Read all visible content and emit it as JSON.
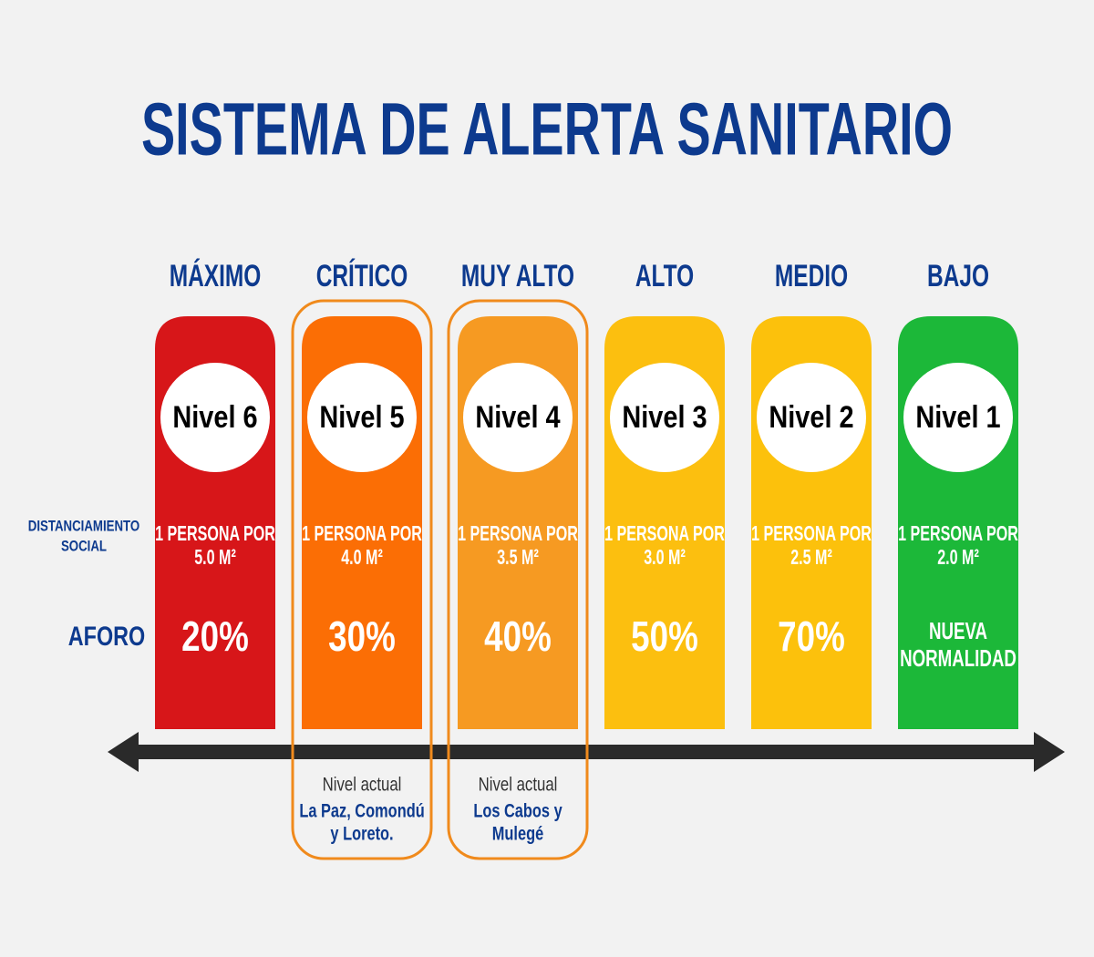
{
  "header": {
    "title": "SISTEMA DE ALERTA SANITARIO"
  },
  "row_labels": {
    "distancing": [
      "DISTANCIAMIENTO",
      "SOCIAL"
    ],
    "capacity": "AFORO"
  },
  "levels": [
    {
      "name": "MÁXIMO",
      "level": "Nivel 6",
      "distancing": [
        "1 PERSONA POR",
        "5.0 M²"
      ],
      "capacity": [
        "20%"
      ],
      "color": "#d71619"
    },
    {
      "name": "CRÍTICO",
      "level": "Nivel 5",
      "distancing": [
        "1 PERSONA POR",
        "4.0 M²"
      ],
      "capacity": [
        "30%"
      ],
      "color": "#fb6e05",
      "current": {
        "label": "Nivel actual",
        "places": [
          "La Paz, Comondú",
          "y Loreto."
        ]
      }
    },
    {
      "name": "MUY ALTO",
      "level": "Nivel 4",
      "distancing": [
        "1 PERSONA POR",
        "3.5 M²"
      ],
      "capacity": [
        "40%"
      ],
      "color": "#f69a22",
      "current": {
        "label": "Nivel actual",
        "places": [
          "Los Cabos y",
          "Mulegé"
        ]
      }
    },
    {
      "name": "ALTO",
      "level": "Nivel 3",
      "distancing": [
        "1 PERSONA POR",
        "3.0 M²"
      ],
      "capacity": [
        "50%"
      ],
      "color": "#fcbf0f"
    },
    {
      "name": "MEDIO",
      "level": "Nivel 2",
      "distancing": [
        "1 PERSONA POR",
        "2.5 M²"
      ],
      "capacity": [
        "70%"
      ],
      "color": "#fcc10c"
    },
    {
      "name": "BAJO",
      "level": "Nivel 1",
      "distancing": [
        "1 PERSONA POR",
        "2.0 M²"
      ],
      "capacity": [
        "NUEVA",
        "NORMALIDAD"
      ],
      "color": "#1cb839"
    }
  ]
}
